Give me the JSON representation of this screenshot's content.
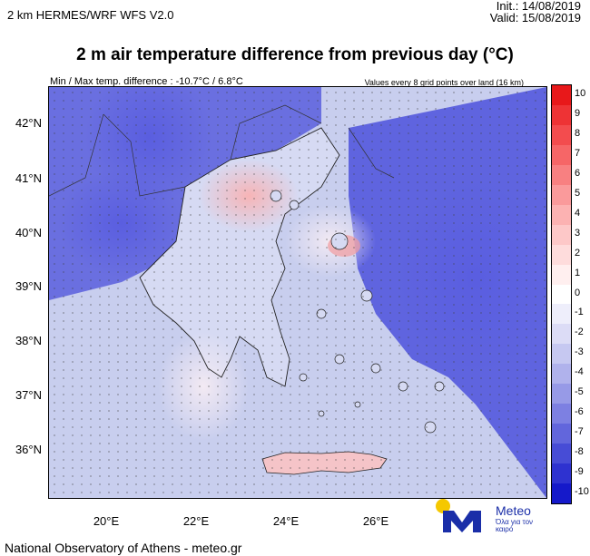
{
  "header": {
    "model": "2 km HERMES/WRF WFS V2.0",
    "init": "Init.:  14/08/2019",
    "valid": "Valid: 15/08/2019",
    "title": "2 m air temperature difference from previous day (°C)",
    "minmax": "Min / Max temp. difference : -10.7°C / 6.8°C",
    "note": "Values every 8 grid points over land (16 km)"
  },
  "map": {
    "lat_labels": [
      "42°N",
      "41°N",
      "40°N",
      "39°N",
      "38°N",
      "37°N",
      "36°N"
    ],
    "lon_labels": [
      "20°E",
      "22°E",
      "24°E",
      "26°E"
    ],
    "extent": {
      "lon_min": 19.2,
      "lon_max": 30.2,
      "lat_min": 35.1,
      "lat_max": 42.7
    },
    "min_diff": -10.7,
    "max_diff": 6.8
  },
  "colorbar": {
    "labels": [
      "10",
      "9",
      "8",
      "7",
      "6",
      "5",
      "4",
      "3",
      "2",
      "1",
      "0",
      "-1",
      "-2",
      "-3",
      "-4",
      "-5",
      "-6",
      "-7",
      "-8",
      "-9",
      "-10"
    ],
    "colors": [
      "#e8181a",
      "#ee3335",
      "#f34c4e",
      "#f66667",
      "#f88081",
      "#fa9a9b",
      "#fcb2b2",
      "#fdc8c8",
      "#fedcdc",
      "#ffefef",
      "#ffffff",
      "#eeeefb",
      "#dcdcf6",
      "#c6c8f1",
      "#b0b2ec",
      "#979ae7",
      "#7d80e2",
      "#6266dc",
      "#474cd6",
      "#2e32d0",
      "#1519ca"
    ],
    "land_color": "#d5d9f2",
    "sea_color": "#c2c8ee"
  },
  "footer": "National Observatory of Athens - meteo.gr",
  "logo": {
    "name": "Meteo",
    "tagline": "Όλα για τον καιρό"
  }
}
